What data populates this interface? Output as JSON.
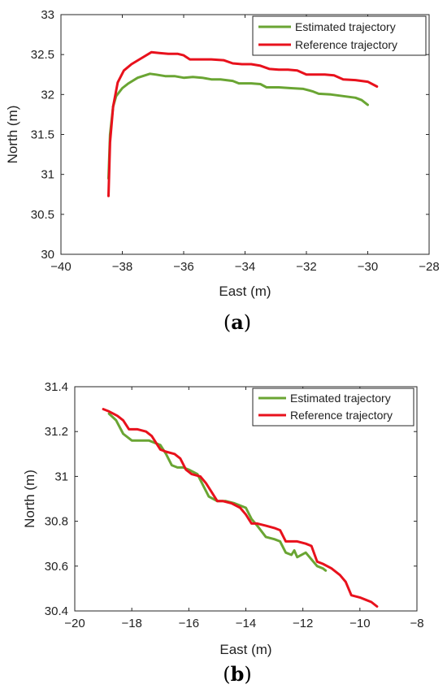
{
  "chart_data": [
    {
      "type": "line",
      "caption_open": "(",
      "caption_letter": "a",
      "caption_close": ")",
      "xlabel": "East (m)",
      "ylabel": "North (m)",
      "xlim": [
        -40,
        -28
      ],
      "ylim": [
        30,
        33
      ],
      "xticks": [
        -40,
        -38,
        -36,
        -34,
        -32,
        -30,
        -28
      ],
      "yticks": [
        30,
        30.5,
        31,
        31.5,
        32,
        32.5,
        33
      ],
      "grid": false,
      "legend_position": "top-right",
      "series": [
        {
          "name": "Estimated trajectory",
          "color": "#6aa533",
          "x": [
            -38.45,
            -38.4,
            -38.3,
            -38.2,
            -38.0,
            -37.8,
            -37.5,
            -37.1,
            -36.9,
            -36.6,
            -36.3,
            -36.0,
            -35.7,
            -35.4,
            -35.1,
            -34.8,
            -34.4,
            -34.2,
            -33.8,
            -33.5,
            -33.3,
            -32.9,
            -32.5,
            -32.1,
            -31.8,
            -31.6,
            -31.2,
            -30.8,
            -30.4,
            -30.2,
            -30.0
          ],
          "y": [
            30.95,
            31.5,
            31.85,
            31.98,
            32.08,
            32.14,
            32.21,
            32.26,
            32.25,
            32.23,
            32.23,
            32.21,
            32.22,
            32.21,
            32.19,
            32.19,
            32.17,
            32.14,
            32.14,
            32.13,
            32.09,
            32.09,
            32.08,
            32.07,
            32.04,
            32.01,
            32.0,
            31.98,
            31.96,
            31.93,
            31.87
          ]
        },
        {
          "name": "Reference trajectory",
          "color": "#e8111c",
          "x": [
            -38.45,
            -38.4,
            -38.3,
            -38.15,
            -37.95,
            -37.7,
            -37.4,
            -37.05,
            -36.8,
            -36.5,
            -36.2,
            -36.0,
            -35.8,
            -35.4,
            -35.1,
            -34.7,
            -34.4,
            -34.1,
            -33.8,
            -33.5,
            -33.2,
            -32.9,
            -32.6,
            -32.3,
            -32.0,
            -31.7,
            -31.4,
            -31.1,
            -30.8,
            -30.4,
            -30.0,
            -29.7
          ],
          "y": [
            30.73,
            31.4,
            31.85,
            32.15,
            32.3,
            32.38,
            32.45,
            32.53,
            32.52,
            32.51,
            32.51,
            32.49,
            32.44,
            32.44,
            32.44,
            32.43,
            32.39,
            32.38,
            32.38,
            32.36,
            32.32,
            32.31,
            32.31,
            32.3,
            32.25,
            32.25,
            32.25,
            32.24,
            32.19,
            32.18,
            32.16,
            32.1
          ]
        }
      ]
    },
    {
      "type": "line",
      "caption_open": "(",
      "caption_letter": "b",
      "caption_close": ")",
      "xlabel": "East (m)",
      "ylabel": "North (m)",
      "xlim": [
        -20,
        -8
      ],
      "ylim": [
        30.4,
        31.4
      ],
      "xticks": [
        -20,
        -18,
        -16,
        -14,
        -12,
        -10,
        -8
      ],
      "yticks": [
        30.4,
        30.6,
        30.8,
        31,
        31.2,
        31.4
      ],
      "grid": false,
      "legend_position": "top-right",
      "series": [
        {
          "name": "Estimated trajectory",
          "color": "#6aa533",
          "x": [
            -18.8,
            -18.55,
            -18.3,
            -18.0,
            -17.7,
            -17.4,
            -17.2,
            -17.0,
            -16.8,
            -16.6,
            -16.4,
            -16.2,
            -16.0,
            -15.7,
            -15.5,
            -15.3,
            -15.0,
            -14.7,
            -14.4,
            -14.2,
            -14.0,
            -13.8,
            -13.6,
            -13.3,
            -13.0,
            -12.8,
            -12.6,
            -12.4,
            -12.3,
            -12.2,
            -11.9,
            -11.7,
            -11.5,
            -11.3,
            -11.2
          ],
          "y": [
            31.28,
            31.25,
            31.19,
            31.16,
            31.16,
            31.16,
            31.15,
            31.14,
            31.1,
            31.05,
            31.04,
            31.04,
            31.03,
            31.01,
            30.96,
            30.91,
            30.89,
            30.89,
            30.88,
            30.87,
            30.86,
            30.81,
            30.78,
            30.73,
            30.72,
            30.71,
            30.66,
            30.65,
            30.67,
            30.64,
            30.66,
            30.63,
            30.6,
            30.59,
            30.58
          ]
        },
        {
          "name": "Reference trajectory",
          "color": "#e8111c",
          "x": [
            -19.0,
            -18.8,
            -18.5,
            -18.3,
            -18.1,
            -17.8,
            -17.5,
            -17.3,
            -17.0,
            -16.8,
            -16.5,
            -16.3,
            -16.1,
            -15.9,
            -15.6,
            -15.4,
            -15.2,
            -15.0,
            -14.8,
            -14.5,
            -14.2,
            -14.0,
            -13.8,
            -13.6,
            -13.3,
            -13.0,
            -12.8,
            -12.6,
            -12.4,
            -12.2,
            -11.9,
            -11.7,
            -11.5,
            -11.3,
            -11.0,
            -10.7,
            -10.5,
            -10.3,
            -10.0,
            -9.8,
            -9.6,
            -9.4
          ],
          "y": [
            31.3,
            31.29,
            31.27,
            31.25,
            31.21,
            31.21,
            31.2,
            31.18,
            31.12,
            31.11,
            31.1,
            31.08,
            31.03,
            31.01,
            31.0,
            30.97,
            30.93,
            30.89,
            30.89,
            30.88,
            30.86,
            30.83,
            30.79,
            30.79,
            30.78,
            30.77,
            30.76,
            30.71,
            30.71,
            30.71,
            30.7,
            30.69,
            30.62,
            30.61,
            30.59,
            30.56,
            30.53,
            30.47,
            30.46,
            30.45,
            30.44,
            30.42
          ]
        }
      ]
    }
  ]
}
